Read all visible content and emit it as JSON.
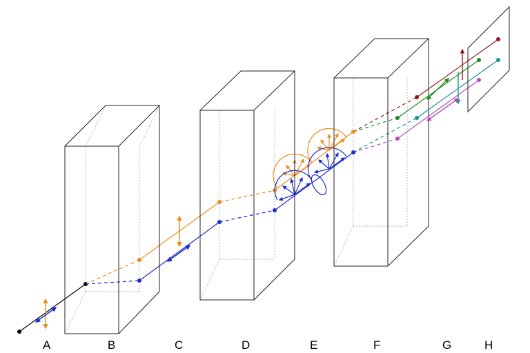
{
  "labels": [
    "A",
    "B",
    "C",
    "D",
    "E",
    "F",
    "G",
    "H"
  ],
  "colors": {
    "outline": "#222222",
    "orange": "#f08c1a",
    "blue": "#1a2ad0",
    "dark_red": "#8b1a1a",
    "green": "#1e8a1e",
    "teal": "#1a9090",
    "violet": "#b24cc0",
    "source": "#000000"
  },
  "components": {
    "crystal_count": 3,
    "screen_count": 1
  }
}
